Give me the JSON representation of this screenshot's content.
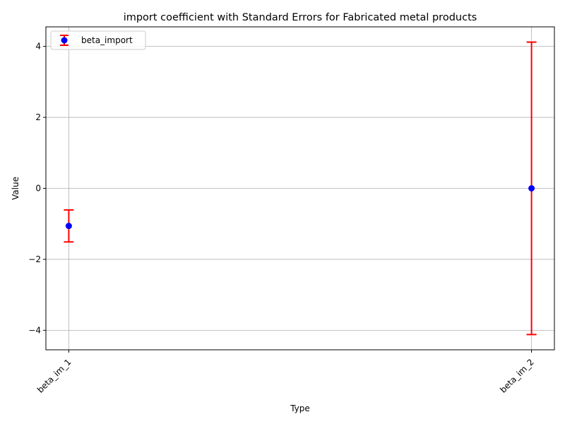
{
  "chart_data": {
    "type": "scatter",
    "title": "import coefficient with Standard Errors for Fabricated metal products",
    "xlabel": "Type",
    "ylabel": "Value",
    "categories": [
      "beta_im_1",
      "beta_im_2"
    ],
    "ylim": [
      -4.55,
      4.55
    ],
    "yticks": [
      -4,
      -2,
      0,
      2,
      4
    ],
    "ytick_labels": [
      "−4",
      "−2",
      "0",
      "2",
      "4"
    ],
    "grid": true,
    "legend_position": "top-left",
    "series": [
      {
        "name": "beta_import",
        "values": [
          -1.06,
          0.0
        ],
        "errors": [
          0.45,
          4.12
        ],
        "marker_color": "#0000ff",
        "error_color": "#ff0000"
      }
    ]
  }
}
